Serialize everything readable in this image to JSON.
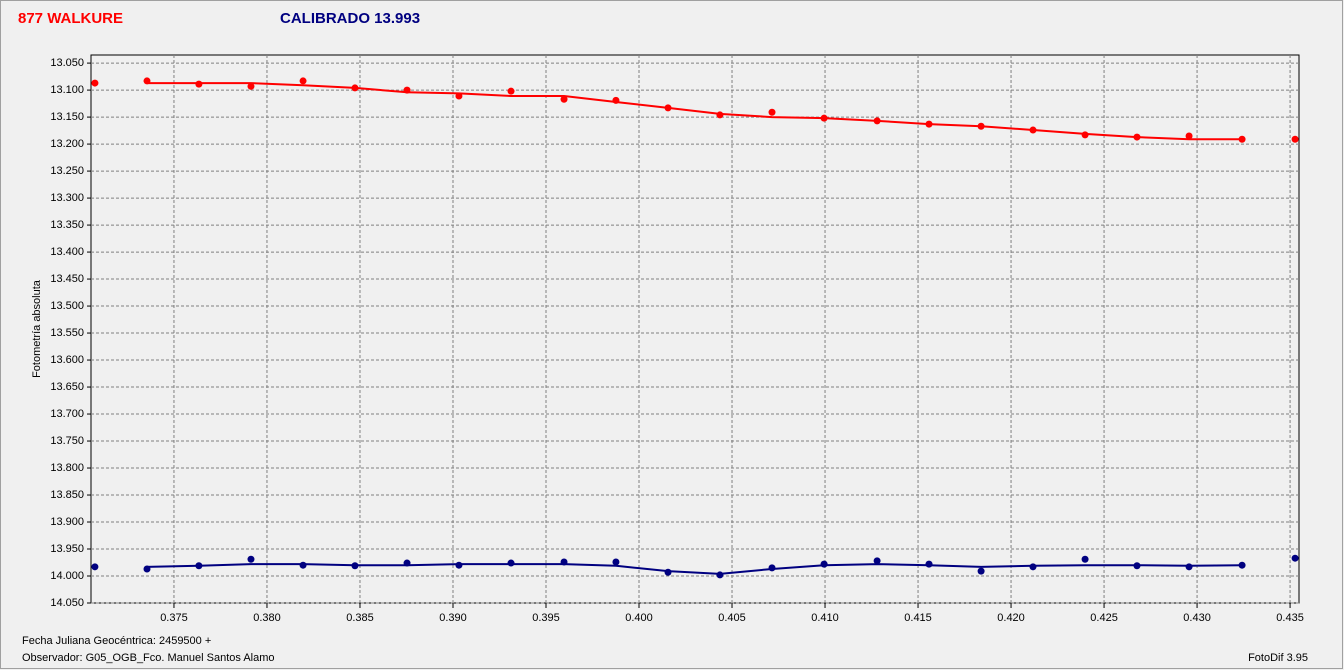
{
  "chart_data": {
    "type": "scatter",
    "title": "877 WALKURE",
    "subtitle": "CALIBRADO 13.993",
    "ylabel": "Fotometría absoluta",
    "xlabel": "Fecha Juliana Geocéntrica: 2459500 +",
    "footer": {
      "observer": "Observador: G05_OGB_Fco. Manuel Santos Alamo",
      "software": "FotoDif 3.95"
    },
    "grid": true,
    "xlim": [
      0.37054,
      0.43548
    ],
    "ylim": [
      14.05,
      13.035
    ],
    "xticks": [
      {
        "value": 0.375,
        "label": "0.375"
      },
      {
        "value": 0.38,
        "label": "0.380"
      },
      {
        "value": 0.385,
        "label": "0.385"
      },
      {
        "value": 0.39,
        "label": "0.390"
      },
      {
        "value": 0.395,
        "label": "0.395"
      },
      {
        "value": 0.4,
        "label": "0.400"
      },
      {
        "value": 0.405,
        "label": "0.405"
      },
      {
        "value": 0.41,
        "label": "0.410"
      },
      {
        "value": 0.415,
        "label": "0.415"
      },
      {
        "value": 0.42,
        "label": "0.420"
      },
      {
        "value": 0.425,
        "label": "0.425"
      },
      {
        "value": 0.43,
        "label": "0.430"
      },
      {
        "value": 0.435,
        "label": "0.435"
      }
    ],
    "yticks": [
      {
        "value": 13.05,
        "label": "13.050"
      },
      {
        "value": 13.1,
        "label": "13.100"
      },
      {
        "value": 13.15,
        "label": "13.150"
      },
      {
        "value": 13.2,
        "label": "13.200"
      },
      {
        "value": 13.25,
        "label": "13.250"
      },
      {
        "value": 13.3,
        "label": "13.300"
      },
      {
        "value": 13.35,
        "label": "13.350"
      },
      {
        "value": 13.4,
        "label": "13.400"
      },
      {
        "value": 13.45,
        "label": "13.450"
      },
      {
        "value": 13.5,
        "label": "13.500"
      },
      {
        "value": 13.55,
        "label": "13.550"
      },
      {
        "value": 13.6,
        "label": "13.600"
      },
      {
        "value": 13.65,
        "label": "13.650"
      },
      {
        "value": 13.7,
        "label": "13.700"
      },
      {
        "value": 13.75,
        "label": "13.750"
      },
      {
        "value": 13.8,
        "label": "13.800"
      },
      {
        "value": 13.85,
        "label": "13.850"
      },
      {
        "value": 13.9,
        "label": "13.900"
      },
      {
        "value": 13.95,
        "label": "13.950"
      },
      {
        "value": 14.0,
        "label": "14.000"
      },
      {
        "value": 14.05,
        "label": "14.050"
      }
    ],
    "x": [
      0.37075,
      0.37355,
      0.37634,
      0.37914,
      0.38194,
      0.38473,
      0.38753,
      0.39032,
      0.39312,
      0.39597,
      0.39876,
      0.40156,
      0.40435,
      0.40715,
      0.40995,
      0.4128,
      0.41559,
      0.41839,
      0.42118,
      0.42398,
      0.42677,
      0.42957,
      0.43242,
      0.43527
    ],
    "series": [
      {
        "color": "#ff0000",
        "values": [
          13.087,
          13.083,
          13.089,
          13.093,
          13.083,
          13.096,
          13.1,
          13.111,
          13.102,
          13.117,
          13.119,
          13.133,
          13.146,
          13.141,
          13.152,
          13.157,
          13.163,
          13.167,
          13.174,
          13.183,
          13.187,
          13.185,
          13.191,
          13.191
        ],
        "fit": [
          null,
          13.087,
          13.087,
          13.087,
          13.091,
          13.096,
          13.104,
          13.106,
          13.111,
          13.111,
          13.122,
          13.133,
          13.144,
          13.15,
          13.152,
          13.157,
          13.163,
          13.167,
          13.174,
          13.181,
          13.187,
          13.191,
          13.191,
          null
        ]
      },
      {
        "color": "#000080",
        "values": [
          13.983,
          13.987,
          13.981,
          13.969,
          13.98,
          13.981,
          13.976,
          13.98,
          13.976,
          13.974,
          13.974,
          13.993,
          13.998,
          13.985,
          13.978,
          13.972,
          13.978,
          13.991,
          13.983,
          13.969,
          13.981,
          13.983,
          13.98,
          13.967
        ],
        "fit": [
          null,
          13.983,
          13.981,
          13.978,
          13.978,
          13.98,
          13.98,
          13.978,
          13.978,
          13.978,
          13.981,
          13.991,
          13.996,
          13.987,
          13.98,
          13.978,
          13.98,
          13.983,
          13.981,
          13.98,
          13.98,
          13.981,
          13.98,
          null
        ]
      }
    ]
  }
}
